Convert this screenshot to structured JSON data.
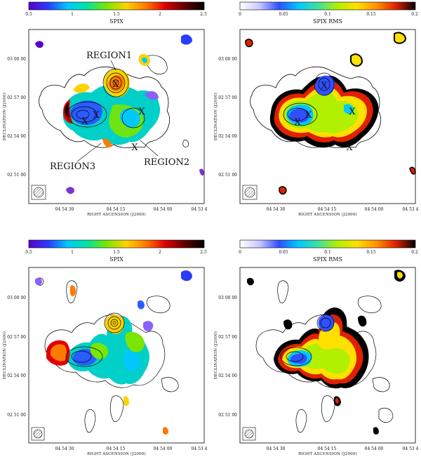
{
  "colorbars": {
    "spix": {
      "title": "SPIX",
      "ticks": [
        "0.5",
        "1",
        "1.5",
        "2",
        "2.5"
      ],
      "range": [
        0.5,
        2.5
      ]
    },
    "rms": {
      "title": "SPIX RMS",
      "ticks": [
        "0",
        "0.05",
        "0.1",
        "0.15",
        "0.2"
      ],
      "range": [
        0,
        0.2
      ]
    }
  },
  "axes": {
    "xlabel": "RIGHT ASCENSION (J2000)",
    "ylabel": "DECLINATION (J2000)",
    "xticks": [
      "04 54 30",
      "04 54 15",
      "04 54 00",
      "04 53 4"
    ],
    "yticks": [
      "03 00 00",
      "02 57 00",
      "02 54 00",
      "02 51 00"
    ]
  },
  "regions": {
    "region1": "REGION1",
    "region2": "REGION2",
    "region3": "REGION3"
  },
  "marker": "X",
  "palettes": {
    "spix": [
      "#5a00c8",
      "#2a3cff",
      "#00c8ff",
      "#00e6a0",
      "#7ae600",
      "#ffd200",
      "#ff7a00",
      "#e00000",
      "#600000",
      "#000000"
    ],
    "rms": [
      "#ffffff",
      "#c8c8ff",
      "#3050ff",
      "#00c8ff",
      "#40e0a0",
      "#b0f000",
      "#ffe000",
      "#ff9000",
      "#e02000",
      "#000000"
    ]
  }
}
